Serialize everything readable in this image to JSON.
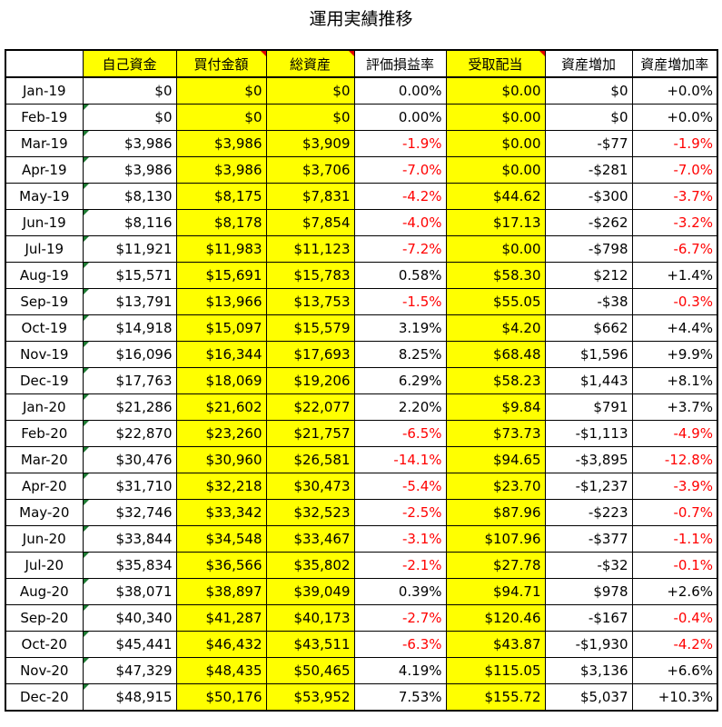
{
  "title": "運用実績推移",
  "colors": {
    "highlight": "#ffff00",
    "negative": "#ff0000",
    "comment_marker": "#e00000",
    "error_marker": "#1e7b34"
  },
  "table": {
    "headers": [
      "",
      "自己資金",
      "買付金額",
      "総資産",
      "評価損益率",
      "受取配当",
      "資産増加",
      "資産増加率"
    ],
    "rows": [
      {
        "month": "Jan-19",
        "own": "$0",
        "buy": "$0",
        "total": "$0",
        "rate": "0.00%",
        "div": "$0.00",
        "inc": "$0",
        "incr": "+0.0%"
      },
      {
        "month": "Feb-19",
        "own": "$0",
        "buy": "$0",
        "total": "$0",
        "rate": "0.00%",
        "div": "$0.00",
        "inc": "$0",
        "incr": "+0.0%"
      },
      {
        "month": "Mar-19",
        "own": "$3,986",
        "buy": "$3,986",
        "total": "$3,909",
        "rate": "-1.9%",
        "div": "$0.00",
        "inc": "-$77",
        "incr": "-1.9%"
      },
      {
        "month": "Apr-19",
        "own": "$3,986",
        "buy": "$3,986",
        "total": "$3,706",
        "rate": "-7.0%",
        "div": "$0.00",
        "inc": "-$281",
        "incr": "-7.0%"
      },
      {
        "month": "May-19",
        "own": "$8,130",
        "buy": "$8,175",
        "total": "$7,831",
        "rate": "-4.2%",
        "div": "$44.62",
        "inc": "-$300",
        "incr": "-3.7%"
      },
      {
        "month": "Jun-19",
        "own": "$8,116",
        "buy": "$8,178",
        "total": "$7,854",
        "rate": "-4.0%",
        "div": "$17.13",
        "inc": "-$262",
        "incr": "-3.2%"
      },
      {
        "month": "Jul-19",
        "own": "$11,921",
        "buy": "$11,983",
        "total": "$11,123",
        "rate": "-7.2%",
        "div": "$0.00",
        "inc": "-$798",
        "incr": "-6.7%"
      },
      {
        "month": "Aug-19",
        "own": "$15,571",
        "buy": "$15,691",
        "total": "$15,783",
        "rate": "0.58%",
        "div": "$58.30",
        "inc": "$212",
        "incr": "+1.4%"
      },
      {
        "month": "Sep-19",
        "own": "$13,791",
        "buy": "$13,966",
        "total": "$13,753",
        "rate": "-1.5%",
        "div": "$55.05",
        "inc": "-$38",
        "incr": "-0.3%"
      },
      {
        "month": "Oct-19",
        "own": "$14,918",
        "buy": "$15,097",
        "total": "$15,579",
        "rate": "3.19%",
        "div": "$4.20",
        "inc": "$662",
        "incr": "+4.4%"
      },
      {
        "month": "Nov-19",
        "own": "$16,096",
        "buy": "$16,344",
        "total": "$17,693",
        "rate": "8.25%",
        "div": "$68.48",
        "inc": "$1,596",
        "incr": "+9.9%"
      },
      {
        "month": "Dec-19",
        "own": "$17,763",
        "buy": "$18,069",
        "total": "$19,206",
        "rate": "6.29%",
        "div": "$58.23",
        "inc": "$1,443",
        "incr": "+8.1%"
      },
      {
        "month": "Jan-20",
        "own": "$21,286",
        "buy": "$21,602",
        "total": "$22,077",
        "rate": "2.20%",
        "div": "$9.84",
        "inc": "$791",
        "incr": "+3.7%"
      },
      {
        "month": "Feb-20",
        "own": "$22,870",
        "buy": "$23,260",
        "total": "$21,757",
        "rate": "-6.5%",
        "div": "$73.73",
        "inc": "-$1,113",
        "incr": "-4.9%"
      },
      {
        "month": "Mar-20",
        "own": "$30,476",
        "buy": "$30,960",
        "total": "$26,581",
        "rate": "-14.1%",
        "div": "$94.65",
        "inc": "-$3,895",
        "incr": "-12.8%"
      },
      {
        "month": "Apr-20",
        "own": "$31,710",
        "buy": "$32,218",
        "total": "$30,473",
        "rate": "-5.4%",
        "div": "$23.70",
        "inc": "-$1,237",
        "incr": "-3.9%"
      },
      {
        "month": "May-20",
        "own": "$32,746",
        "buy": "$33,342",
        "total": "$32,523",
        "rate": "-2.5%",
        "div": "$87.96",
        "inc": "-$223",
        "incr": "-0.7%"
      },
      {
        "month": "Jun-20",
        "own": "$33,844",
        "buy": "$34,548",
        "total": "$33,467",
        "rate": "-3.1%",
        "div": "$107.96",
        "inc": "-$377",
        "incr": "-1.1%"
      },
      {
        "month": "Jul-20",
        "own": "$35,834",
        "buy": "$36,566",
        "total": "$35,802",
        "rate": "-2.1%",
        "div": "$27.78",
        "inc": "-$32",
        "incr": "-0.1%"
      },
      {
        "month": "Aug-20",
        "own": "$38,071",
        "buy": "$38,897",
        "total": "$39,049",
        "rate": "0.39%",
        "div": "$94.71",
        "inc": "$978",
        "incr": "+2.6%"
      },
      {
        "month": "Sep-20",
        "own": "$40,340",
        "buy": "$41,287",
        "total": "$40,173",
        "rate": "-2.7%",
        "div": "$120.46",
        "inc": "-$167",
        "incr": "-0.4%"
      },
      {
        "month": "Oct-20",
        "own": "$45,441",
        "buy": "$46,432",
        "total": "$43,511",
        "rate": "-6.3%",
        "div": "$43.87",
        "inc": "-$1,930",
        "incr": "-4.2%"
      },
      {
        "month": "Nov-20",
        "own": "$47,329",
        "buy": "$48,435",
        "total": "$50,465",
        "rate": "4.19%",
        "div": "$115.05",
        "inc": "$3,136",
        "incr": "+6.6%"
      },
      {
        "month": "Dec-20",
        "own": "$48,915",
        "buy": "$50,176",
        "total": "$53,952",
        "rate": "7.53%",
        "div": "$155.72",
        "inc": "$5,037",
        "incr": "+10.3%"
      }
    ]
  }
}
